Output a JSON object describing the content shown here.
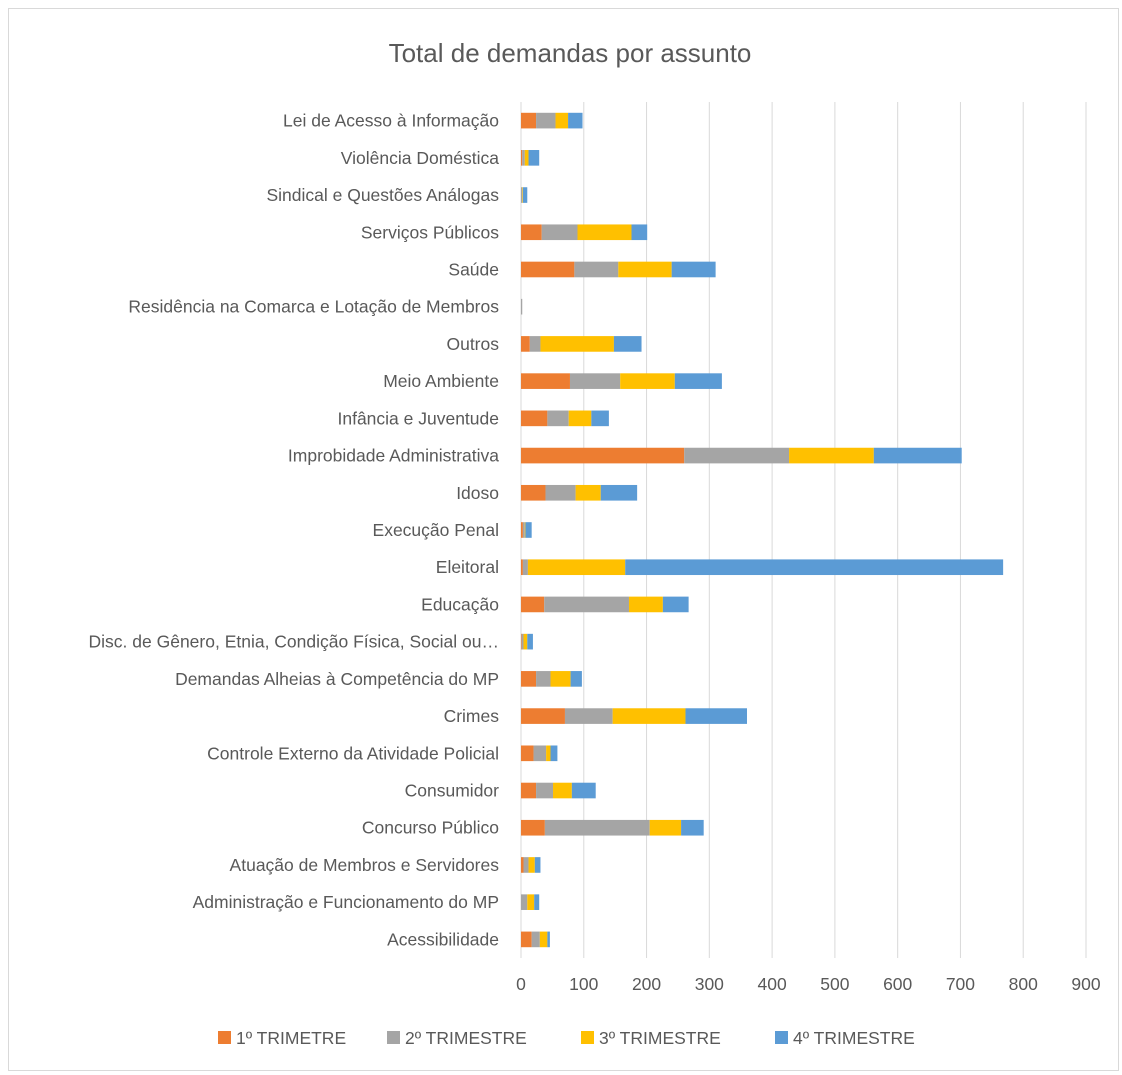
{
  "chart_data": {
    "type": "bar",
    "orientation": "horizontal",
    "stacked": true,
    "title": "Total de demandas por assunto",
    "xlabel": "",
    "ylabel": "",
    "xlim": [
      0,
      900
    ],
    "ticks": [
      "0",
      "100",
      "200",
      "300",
      "400",
      "500",
      "600",
      "700",
      "800",
      "900"
    ],
    "grid": true,
    "legend_position": "bottom",
    "categories": [
      "Lei de Acesso à Informação",
      "Violência Doméstica",
      "Sindical e Questões Análogas",
      "Serviços Públicos",
      "Saúde",
      "Residência na Comarca e Lotação de Membros",
      "Outros",
      "Meio Ambiente",
      "Infância e Juventude",
      "Improbidade Administrativa",
      "Idoso",
      "Execução Penal",
      "Eleitoral",
      "Educação",
      "Disc. de Gênero, Etnia, Condição Física, Social ou…",
      "Demandas Alheias à Competência do MP",
      "Crimes",
      "Controle Externo da Atividade Policial",
      "Consumidor",
      "Concurso Público",
      "Atuação de Membros e Servidores",
      "Administração e Funcionamento do MP",
      "Acessibilidade"
    ],
    "series": [
      {
        "name": "1º TRIMETRE",
        "color": "#ed7d31",
        "values": [
          24,
          2,
          0,
          33,
          85,
          0,
          14,
          78,
          42,
          260,
          39,
          3,
          3,
          37,
          1,
          24,
          70,
          20,
          24,
          38,
          4,
          0,
          17
        ]
      },
      {
        "name": "2º TRIMESTRE",
        "color": "#a5a5a5",
        "values": [
          31,
          4,
          2,
          57,
          70,
          2,
          17,
          80,
          34,
          167,
          48,
          3,
          8,
          135,
          3,
          23,
          76,
          20,
          27,
          167,
          8,
          10,
          13
        ]
      },
      {
        "name": "3º TRIMESTRE",
        "color": "#ffc000",
        "values": [
          20,
          6,
          1,
          86,
          85,
          0,
          117,
          87,
          36,
          135,
          40,
          1,
          155,
          54,
          6,
          32,
          116,
          7,
          30,
          50,
          10,
          11,
          12
        ]
      },
      {
        "name": "4º TRIMESTRE",
        "color": "#5b9bd5",
        "values": [
          23,
          17,
          7,
          25,
          70,
          0,
          44,
          75,
          28,
          140,
          58,
          10,
          602,
          41,
          9,
          18,
          98,
          11,
          38,
          36,
          9,
          8,
          4
        ]
      }
    ]
  }
}
